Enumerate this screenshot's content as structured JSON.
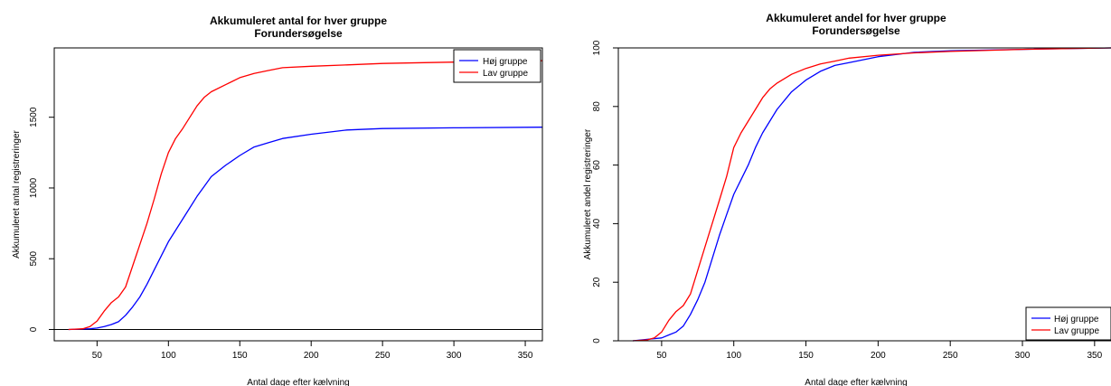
{
  "chart_data": [
    {
      "type": "line",
      "title": "Akkumuleret antal for hver gruppe",
      "subtitle": "Forundersøgelse",
      "xlabel": "Antal dage efter kælvning",
      "ylabel": "Akkumuleret antal registreringer",
      "xlim": [
        20,
        362
      ],
      "ylim": [
        -80,
        1990
      ],
      "xticks": [
        50,
        100,
        150,
        200,
        250,
        300,
        350
      ],
      "yticks": [
        0,
        500,
        1000,
        1500
      ],
      "hline": 0,
      "grid": false,
      "legend_position": "top-right",
      "series": [
        {
          "name": "Høj gruppe",
          "color": "#0000ff",
          "x": [
            30,
            40,
            45,
            50,
            55,
            60,
            65,
            70,
            75,
            80,
            85,
            90,
            95,
            100,
            105,
            110,
            115,
            120,
            125,
            130,
            140,
            150,
            160,
            170,
            180,
            200,
            225,
            250,
            300,
            362
          ],
          "y": [
            0,
            3,
            5,
            10,
            20,
            35,
            55,
            100,
            160,
            230,
            320,
            420,
            520,
            620,
            700,
            780,
            860,
            940,
            1010,
            1080,
            1160,
            1230,
            1290,
            1320,
            1350,
            1380,
            1410,
            1420,
            1425,
            1430
          ]
        },
        {
          "name": "Lav gruppe",
          "color": "#ff0000",
          "x": [
            30,
            40,
            45,
            50,
            55,
            60,
            65,
            70,
            75,
            80,
            85,
            90,
            95,
            100,
            105,
            110,
            115,
            120,
            125,
            130,
            140,
            150,
            160,
            170,
            180,
            200,
            225,
            250,
            300,
            362
          ],
          "y": [
            0,
            5,
            20,
            60,
            130,
            190,
            230,
            300,
            450,
            600,
            750,
            920,
            1100,
            1250,
            1350,
            1420,
            1500,
            1580,
            1640,
            1680,
            1730,
            1780,
            1810,
            1830,
            1850,
            1860,
            1870,
            1880,
            1890,
            1900
          ]
        }
      ]
    },
    {
      "type": "line",
      "title": "Akkumuleret andel for hver gruppe",
      "subtitle": "Forundersøgelse",
      "xlabel": "Antal dage efter kælvning",
      "ylabel": "Akkumuleret andel registreringer",
      "xlim": [
        20,
        362
      ],
      "ylim": [
        0,
        100
      ],
      "xticks": [
        50,
        100,
        150,
        200,
        250,
        300,
        350
      ],
      "yticks": [
        0,
        20,
        40,
        60,
        80,
        100
      ],
      "grid": false,
      "legend_position": "bottom-right",
      "series": [
        {
          "name": "Høj gruppe",
          "color": "#0000ff",
          "x": [
            30,
            40,
            50,
            55,
            60,
            65,
            70,
            75,
            80,
            85,
            90,
            95,
            100,
            105,
            110,
            115,
            120,
            125,
            130,
            140,
            150,
            160,
            170,
            180,
            200,
            225,
            250,
            300,
            362
          ],
          "y": [
            0,
            0.5,
            1,
            2,
            3,
            5,
            9,
            14,
            20,
            28,
            36,
            43,
            50,
            55,
            60,
            66,
            71,
            75,
            79,
            85,
            89,
            92,
            94,
            95,
            97,
            98.5,
            99,
            99.5,
            100
          ]
        },
        {
          "name": "Lav gruppe",
          "color": "#ff0000",
          "x": [
            30,
            40,
            45,
            50,
            55,
            60,
            65,
            70,
            75,
            80,
            85,
            90,
            95,
            100,
            105,
            110,
            115,
            120,
            125,
            130,
            140,
            150,
            160,
            170,
            180,
            200,
            225,
            250,
            300,
            362
          ],
          "y": [
            0,
            0.3,
            1,
            3,
            7,
            10,
            12,
            16,
            24,
            32,
            40,
            48,
            56,
            66,
            71,
            75,
            79,
            83,
            86,
            88,
            91,
            93,
            94.5,
            95.5,
            96.5,
            97.5,
            98.3,
            98.8,
            99.5,
            100
          ]
        }
      ]
    }
  ]
}
